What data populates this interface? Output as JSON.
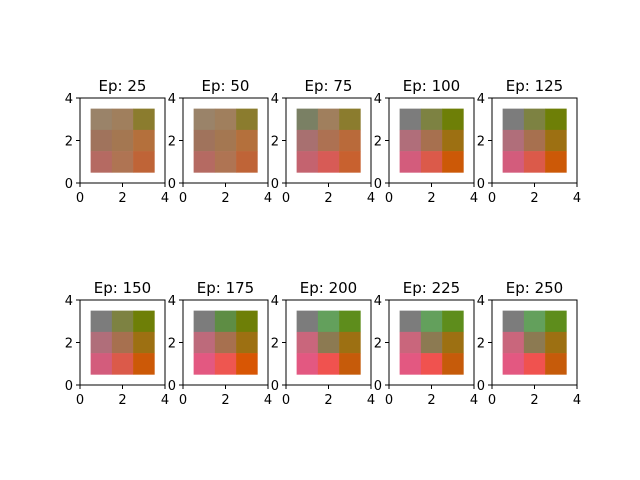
{
  "chart_data": [
    {
      "type": "heatmap",
      "title": "Ep: 25",
      "xlim": [
        0,
        4
      ],
      "ylim": [
        0,
        4
      ],
      "x_ticks": [
        "0",
        "2",
        "4"
      ],
      "y_ticks": [
        "0",
        "2",
        "4"
      ],
      "cells": [
        [
          "#9a8369",
          "#a07f5d",
          "#8b7c2e"
        ],
        [
          "#a0735c",
          "#a47751",
          "#b4703c"
        ],
        [
          "#b56a62",
          "#af7453",
          "#bf6437"
        ]
      ]
    },
    {
      "type": "heatmap",
      "title": "Ep: 50",
      "xlim": [
        0,
        4
      ],
      "ylim": [
        0,
        4
      ],
      "x_ticks": [
        "0",
        "2",
        "4"
      ],
      "y_ticks": [
        "0",
        "2",
        "4"
      ],
      "cells": [
        [
          "#9a8369",
          "#a07f5d",
          "#8b7c2e"
        ],
        [
          "#a0735c",
          "#a47751",
          "#b4703c"
        ],
        [
          "#b56a62",
          "#af7453",
          "#bf6437"
        ]
      ]
    },
    {
      "type": "heatmap",
      "title": "Ep: 75",
      "xlim": [
        0,
        4
      ],
      "ylim": [
        0,
        4
      ],
      "x_ticks": [
        "0",
        "2",
        "4"
      ],
      "y_ticks": [
        "0",
        "2",
        "4"
      ],
      "cells": [
        [
          "#7a8064",
          "#a07f5d",
          "#8b7c2e"
        ],
        [
          "#a87070",
          "#ad7152",
          "#b96a3a"
        ],
        [
          "#c4636f",
          "#d75b56",
          "#c8612f"
        ]
      ]
    },
    {
      "type": "heatmap",
      "title": "Ep: 100",
      "xlim": [
        0,
        4
      ],
      "ylim": [
        0,
        4
      ],
      "x_ticks": [
        "0",
        "2",
        "4"
      ],
      "y_ticks": [
        "0",
        "2",
        "4"
      ],
      "cells": [
        [
          "#7c7c7c",
          "#7d8242",
          "#6e7f07"
        ],
        [
          "#b06e7a",
          "#a7704f",
          "#9d7012"
        ],
        [
          "#d35c7c",
          "#db5a4a",
          "#cc5907"
        ]
      ]
    },
    {
      "type": "heatmap",
      "title": "Ep: 125",
      "xlim": [
        0,
        4
      ],
      "ylim": [
        0,
        4
      ],
      "x_ticks": [
        "0",
        "2",
        "4"
      ],
      "y_ticks": [
        "0",
        "2",
        "4"
      ],
      "cells": [
        [
          "#7c7c7c",
          "#7d8242",
          "#6e7f07"
        ],
        [
          "#b06e7a",
          "#a7704f",
          "#9d7012"
        ],
        [
          "#d35c7c",
          "#db5a4a",
          "#cc5907"
        ]
      ]
    },
    {
      "type": "heatmap",
      "title": "Ep: 150",
      "xlim": [
        0,
        4
      ],
      "ylim": [
        0,
        4
      ],
      "x_ticks": [
        "0",
        "2",
        "4"
      ],
      "y_ticks": [
        "0",
        "2",
        "4"
      ],
      "cells": [
        [
          "#7c7c7c",
          "#7d8242",
          "#6e7f07"
        ],
        [
          "#b06e7a",
          "#a7704f",
          "#9d7012"
        ],
        [
          "#d35c7c",
          "#db5a4a",
          "#cc5907"
        ]
      ]
    },
    {
      "type": "heatmap",
      "title": "Ep: 175",
      "xlim": [
        0,
        4
      ],
      "ylim": [
        0,
        4
      ],
      "x_ticks": [
        "0",
        "2",
        "4"
      ],
      "y_ticks": [
        "0",
        "2",
        "4"
      ],
      "cells": [
        [
          "#7c7c7c",
          "#5e8d44",
          "#6e7f07"
        ],
        [
          "#bd6a7b",
          "#a7704f",
          "#9d7012"
        ],
        [
          "#e35881",
          "#ee5650",
          "#d85604"
        ]
      ]
    },
    {
      "type": "heatmap",
      "title": "Ep: 200",
      "xlim": [
        0,
        4
      ],
      "ylim": [
        0,
        4
      ],
      "x_ticks": [
        "0",
        "2",
        "4"
      ],
      "y_ticks": [
        "0",
        "2",
        "4"
      ],
      "cells": [
        [
          "#7c7c7c",
          "#63a05c",
          "#5e8d1c"
        ],
        [
          "#c9667c",
          "#8c7a52",
          "#9d7012"
        ],
        [
          "#e35881",
          "#f0524f",
          "#c65b0a"
        ]
      ]
    },
    {
      "type": "heatmap",
      "title": "Ep: 225",
      "xlim": [
        0,
        4
      ],
      "ylim": [
        0,
        4
      ],
      "x_ticks": [
        "0",
        "2",
        "4"
      ],
      "y_ticks": [
        "0",
        "2",
        "4"
      ],
      "cells": [
        [
          "#7c7c7c",
          "#63a05c",
          "#5e8d1c"
        ],
        [
          "#c9667c",
          "#8c7a52",
          "#9d7012"
        ],
        [
          "#e35881",
          "#f0524f",
          "#c65b0a"
        ]
      ]
    },
    {
      "type": "heatmap",
      "title": "Ep: 250",
      "xlim": [
        0,
        4
      ],
      "ylim": [
        0,
        4
      ],
      "x_ticks": [
        "0",
        "2",
        "4"
      ],
      "y_ticks": [
        "0",
        "2",
        "4"
      ],
      "cells": [
        [
          "#7c7c7c",
          "#63a05c",
          "#5e8d1c"
        ],
        [
          "#c9667c",
          "#8c7a52",
          "#9d7012"
        ],
        [
          "#e35881",
          "#f0524f",
          "#c65b0a"
        ]
      ]
    }
  ]
}
